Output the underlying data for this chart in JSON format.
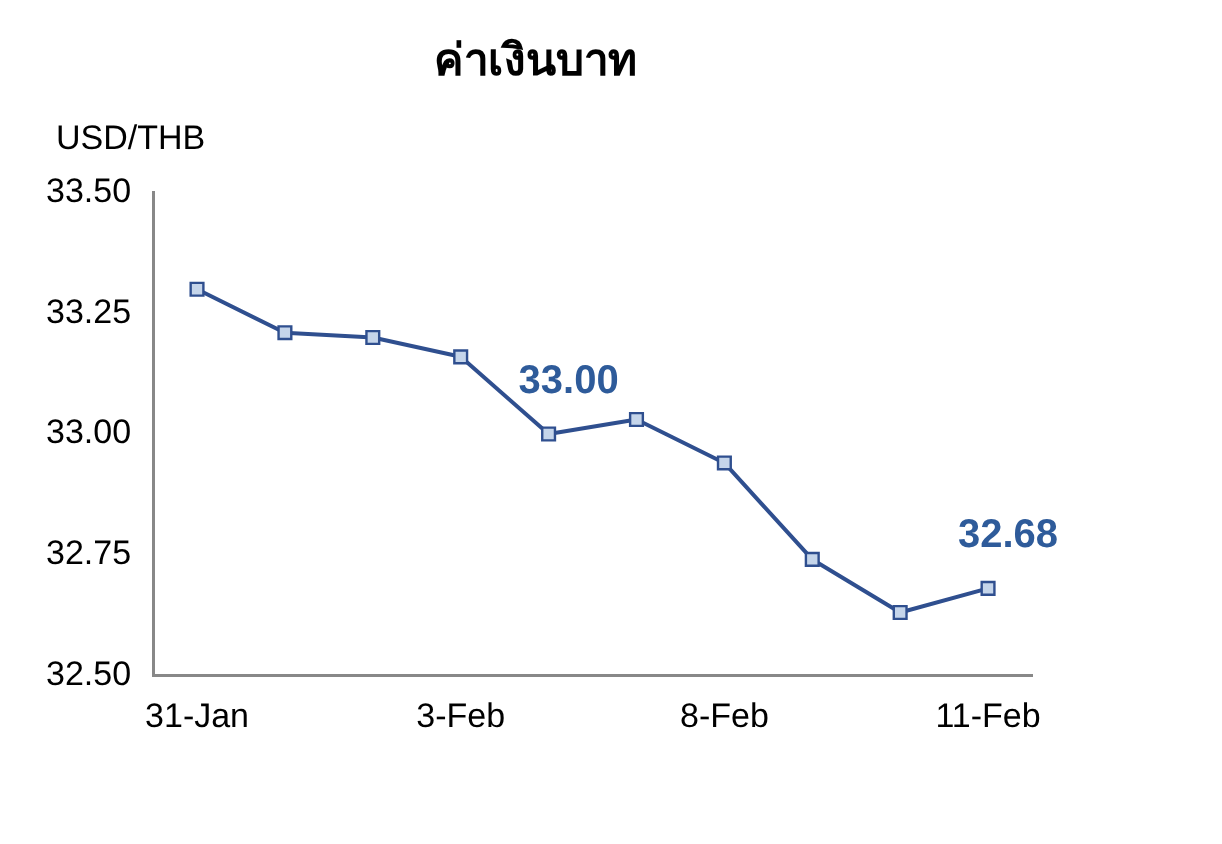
{
  "chart_data": {
    "type": "line",
    "title": "ค่าเงินบาท",
    "ylabel": "USD/THB",
    "categories": [
      "31-Jan",
      null,
      null,
      "3-Feb",
      null,
      null,
      "8-Feb",
      null,
      null,
      "11-Feb"
    ],
    "series": [
      {
        "color": "#2f4f8f",
        "values": [
          33.3,
          33.21,
          33.2,
          33.16,
          33.0,
          33.03,
          32.94,
          32.74,
          32.63,
          32.68
        ],
        "value_labels": [
          null,
          null,
          null,
          null,
          "33.00",
          null,
          null,
          null,
          null,
          "32.68"
        ]
      }
    ],
    "ylim": [
      32.5,
      33.5
    ],
    "yticks": [
      {
        "value": 32.5,
        "label": "32.50"
      },
      {
        "value": 32.75,
        "label": "32.75"
      },
      {
        "value": 33,
        "label": "33.00"
      },
      {
        "value": 33.25,
        "label": "33.25"
      },
      {
        "value": 33.5,
        "label": "33.50"
      }
    ],
    "grid": false,
    "legend": false,
    "marker": "square",
    "line_style": "solid"
  }
}
